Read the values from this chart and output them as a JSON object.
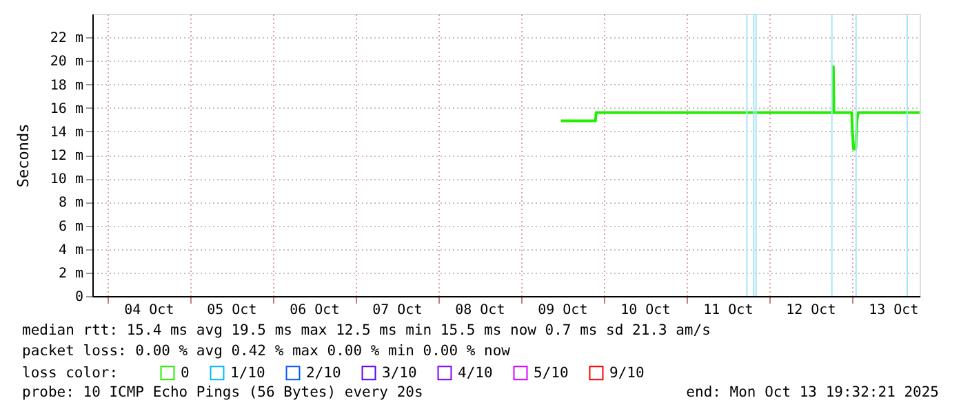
{
  "chart_data": {
    "type": "line",
    "ylabel": "Seconds",
    "x": [
      "2025-10-09T11:30",
      "2025-10-09T21:30",
      "2025-10-09T21:40",
      "2025-10-12T18:20",
      "2025-10-12T18:30",
      "2025-10-12T18:40",
      "2025-10-12T23:50",
      "2025-10-13T00:00",
      "2025-10-13T00:20",
      "2025-10-13T01:00",
      "2025-10-13T01:20",
      "2025-10-13T01:40",
      "2025-10-13T19:30"
    ],
    "series": [
      {
        "name": "0",
        "color": "#22ee00",
        "values": [
          14.9,
          14.9,
          15.6,
          15.6,
          19.5,
          15.6,
          15.6,
          14.2,
          12.5,
          12.5,
          14.9,
          15.6,
          15.6
        ]
      },
      {
        "name": "1/10",
        "color": "#00b8ff",
        "values": [
          null,
          null,
          null,
          null,
          null,
          null,
          null,
          null,
          null,
          null,
          null,
          null,
          null
        ]
      },
      {
        "name": "2/10",
        "color": "#0059ff",
        "values": [
          null,
          null,
          null,
          null,
          null,
          null,
          null,
          null,
          null,
          null,
          null,
          null,
          null
        ]
      },
      {
        "name": "3/10",
        "color": "#5e00ff",
        "values": [
          null,
          null,
          null,
          null,
          null,
          null,
          null,
          null,
          null,
          null,
          null,
          null,
          null
        ]
      },
      {
        "name": "4/10",
        "color": "#7e00ff",
        "values": [
          null,
          null,
          null,
          null,
          null,
          null,
          null,
          null,
          null,
          null,
          null,
          null,
          null
        ]
      },
      {
        "name": "5/10",
        "color": "#dd00ff",
        "values": [
          null,
          null,
          null,
          null,
          null,
          null,
          null,
          null,
          null,
          null,
          null,
          null,
          null
        ]
      },
      {
        "name": "9/10",
        "color": "#ff0000",
        "values": [
          null,
          null,
          null,
          null,
          null,
          null,
          null,
          null,
          null,
          null,
          null,
          null,
          null
        ]
      }
    ],
    "legend_title": "loss color:",
    "legend": "bottom",
    "xlim": [
      "2025-10-03T19:32",
      "2025-10-13T19:32"
    ],
    "xticks": [
      {
        "value": "2025-10-04T00:00",
        "label": null
      },
      {
        "value": "2025-10-04T12:00",
        "label": "04 Oct"
      },
      {
        "value": "2025-10-05T00:00",
        "label": null
      },
      {
        "value": "2025-10-05T12:00",
        "label": "05 Oct"
      },
      {
        "value": "2025-10-06T00:00",
        "label": null
      },
      {
        "value": "2025-10-06T12:00",
        "label": "06 Oct"
      },
      {
        "value": "2025-10-07T00:00",
        "label": null
      },
      {
        "value": "2025-10-07T12:00",
        "label": "07 Oct"
      },
      {
        "value": "2025-10-08T00:00",
        "label": null
      },
      {
        "value": "2025-10-08T12:00",
        "label": "08 Oct"
      },
      {
        "value": "2025-10-09T00:00",
        "label": null
      },
      {
        "value": "2025-10-09T12:00",
        "label": "09 Oct"
      },
      {
        "value": "2025-10-10T00:00",
        "label": null
      },
      {
        "value": "2025-10-10T12:00",
        "label": "10 Oct"
      },
      {
        "value": "2025-10-11T00:00",
        "label": null
      },
      {
        "value": "2025-10-11T12:00",
        "label": "11 Oct"
      },
      {
        "value": "2025-10-12T00:00",
        "label": null
      },
      {
        "value": "2025-10-12T12:00",
        "label": "12 Oct"
      },
      {
        "value": "2025-10-13T00:00",
        "label": null
      },
      {
        "value": "2025-10-13T12:00",
        "label": "13 Oct"
      }
    ],
    "ylim": [
      0,
      24
    ],
    "yticks": [
      0,
      {
        "value": 2,
        "label": "2 m"
      },
      {
        "value": 4,
        "label": "4 m"
      },
      {
        "value": 6,
        "label": "6 m"
      },
      {
        "value": 8,
        "label": "8 m"
      },
      {
        "value": 10,
        "label": "10 m"
      },
      {
        "value": 12,
        "label": "12 m"
      },
      {
        "value": 14,
        "label": "14 m"
      },
      {
        "value": 16,
        "label": "16 m"
      },
      {
        "value": 18,
        "label": "18 m"
      },
      {
        "value": 20,
        "label": "20 m"
      },
      {
        "value": 22,
        "label": "22 m"
      }
    ],
    "grid": true,
    "ref_lines": [
      {
        "axis": "x",
        "value": "2025-10-11T17:25",
        "color": "#a8e4f8"
      },
      {
        "axis": "x",
        "value": "2025-10-11T19:25",
        "color": "#a8e4f8"
      },
      {
        "axis": "x",
        "value": "2025-10-11T20:05",
        "color": "#a8e4f8"
      },
      {
        "axis": "x",
        "value": "2025-10-12T18:05",
        "color": "#a8e4f8"
      },
      {
        "axis": "x",
        "value": "2025-10-13T01:05",
        "color": "#a8e4f8"
      },
      {
        "axis": "x",
        "value": "2025-10-13T15:55",
        "color": "#a8e4f8"
      }
    ],
    "annotations": [
      "median rtt:  15.4 ms avg  19.5 ms max  12.5 ms min  15.5 ms now  0.7 ms sd  21.3   am/s",
      "packet loss: 0.00 % avg  0.42 % max  0.00 % min  0.00 % now",
      "probe:       10 ICMP Echo Pings (56 Bytes) every 20s",
      "end: Mon Oct 13 19:32:21 2025"
    ]
  }
}
